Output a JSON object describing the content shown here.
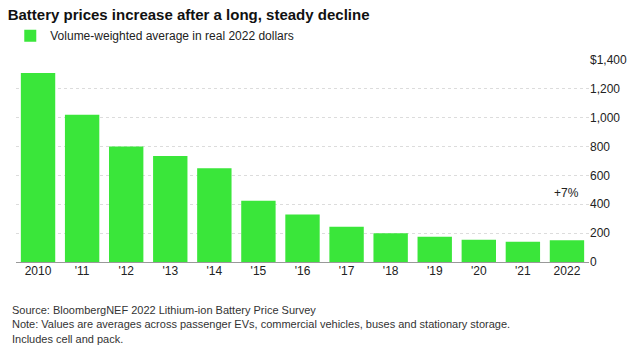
{
  "chart_data": {
    "type": "bar",
    "title": "Battery prices increase after a long, steady decline",
    "categories": [
      "2010",
      "'11",
      "'12",
      "'13",
      "'14",
      "'15",
      "'16",
      "'17",
      "'18",
      "'19",
      "'20",
      "'21",
      "2022"
    ],
    "series": [
      {
        "name": "Volume-weighted average in real 2022 dollars",
        "color": "#3ae63a",
        "values": [
          1310,
          1020,
          800,
          735,
          650,
          425,
          330,
          245,
          200,
          175,
          155,
          141,
          151
        ]
      }
    ],
    "ylim": [
      0,
      1400
    ],
    "yticks": [
      0,
      200,
      400,
      600,
      800,
      {
        "value": 1000,
        "label": "1,000"
      },
      {
        "value": 1200,
        "label": "1,200"
      },
      {
        "value": 1400,
        "label": "$1,400"
      }
    ],
    "grid": true,
    "legend": "top-left",
    "annotations": [
      {
        "text": "+7%",
        "category": "2022"
      }
    ],
    "footnotes": [
      "Source: BloombergNEF 2022 Lithium-ion Battery Price Survey",
      "Note: Values are averages across passenger EVs, commercial vehicles, buses and stationary storage.",
      "Includes cell and pack."
    ]
  }
}
